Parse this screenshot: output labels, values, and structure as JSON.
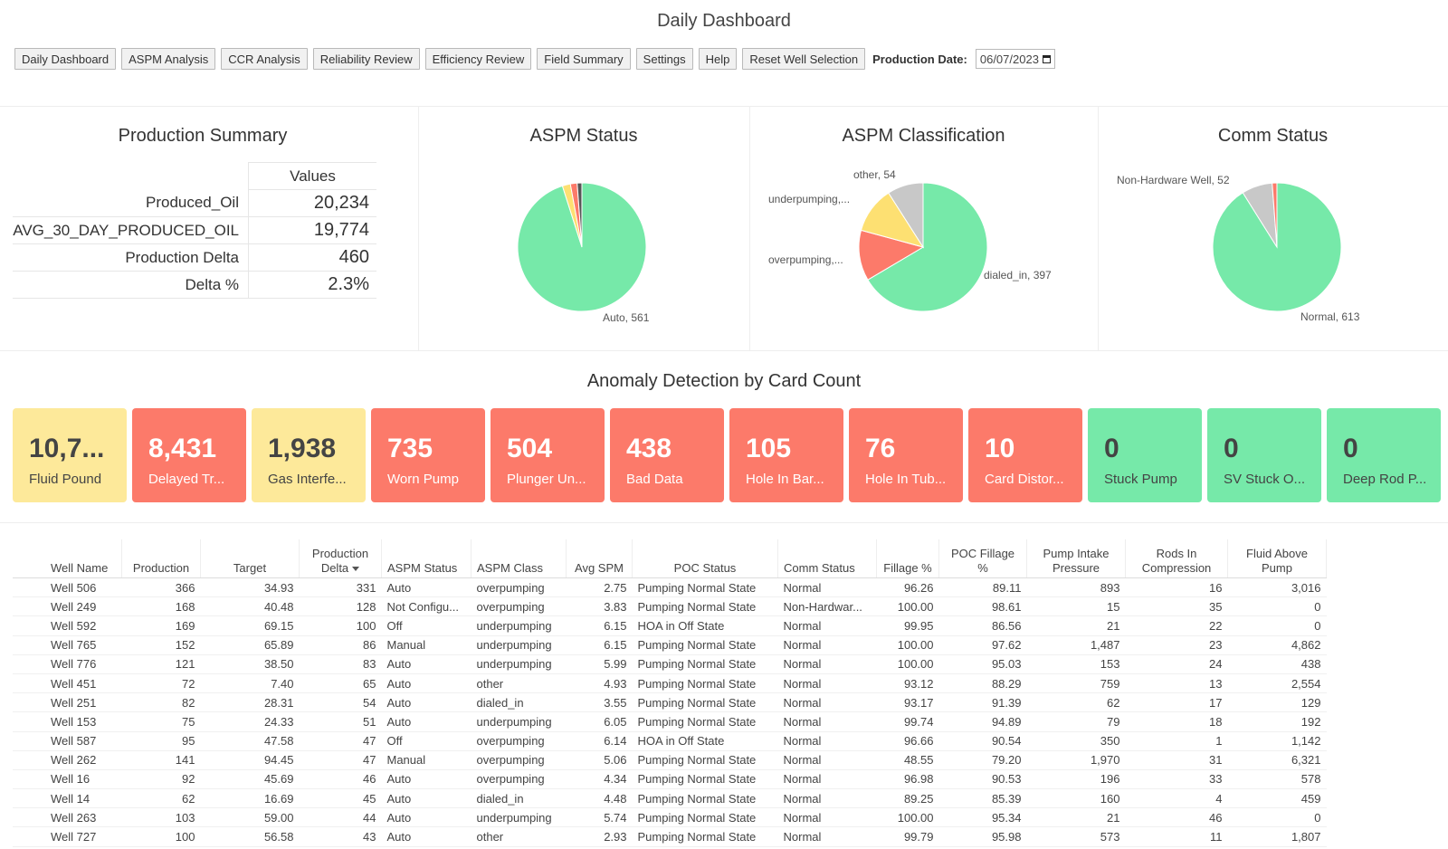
{
  "title": "Daily Dashboard",
  "nav": {
    "buttons": [
      "Daily Dashboard",
      "ASPM Analysis",
      "CCR Analysis",
      "Reliability Review",
      "Efficiency Review",
      "Field Summary",
      "Settings",
      "Help",
      "Reset Well Selection"
    ],
    "date_label": "Production Date:",
    "date_value": "06/07/2023"
  },
  "production_summary": {
    "title": "Production Summary",
    "header": "Values",
    "rows": [
      {
        "name": "Produced_Oil",
        "value": "20,234"
      },
      {
        "name": "AVG_30_DAY_PRODUCED_OIL",
        "value": "19,774"
      },
      {
        "name": "Production Delta",
        "value": "460"
      },
      {
        "name": "Delta %",
        "value": "2.3%"
      }
    ]
  },
  "colors": {
    "green": "#76e9a9",
    "red": "#fc7a6a",
    "yellow": "#fde072",
    "gray": "#c8c8c8",
    "dark": "#555555",
    "card_yellow": "#fde99a"
  },
  "chart_data": [
    {
      "type": "pie",
      "title": "ASPM Status",
      "slices": [
        {
          "label": "Auto",
          "value": 561,
          "color": "#76e9a9",
          "shown_label": "Auto, 561"
        },
        {
          "label": "",
          "value": 12,
          "color": "#fde072",
          "shown_label": ""
        },
        {
          "label": "",
          "value": 10,
          "color": "#fc7a6a",
          "shown_label": ""
        },
        {
          "label": "",
          "value": 7,
          "color": "#555555",
          "shown_label": ""
        }
      ]
    },
    {
      "type": "pie",
      "title": "ASPM Classification",
      "slices": [
        {
          "label": "dialed_in",
          "value": 397,
          "color": "#76e9a9",
          "shown_label": "dialed_in, 397"
        },
        {
          "label": "overpumping",
          "value": 76,
          "color": "#fc7a6a",
          "shown_label": "overpumping,..."
        },
        {
          "label": "underpumping",
          "value": 70,
          "color": "#fde072",
          "shown_label": "underpumping,..."
        },
        {
          "label": "other",
          "value": 54,
          "color": "#c8c8c8",
          "shown_label": "other, 54"
        }
      ]
    },
    {
      "type": "pie",
      "title": "Comm Status",
      "slices": [
        {
          "label": "Normal",
          "value": 613,
          "color": "#76e9a9",
          "shown_label": "Normal, 613"
        },
        {
          "label": "Non-Hardware Well",
          "value": 52,
          "color": "#c8c8c8",
          "shown_label": "Non-Hardware Well, 52"
        },
        {
          "label": "",
          "value": 8,
          "color": "#fc7a6a",
          "shown_label": ""
        }
      ]
    }
  ],
  "anomaly": {
    "title": "Anomaly Detection by Card Count",
    "cards": [
      {
        "value": "10,7...",
        "label": "Fluid Pound",
        "color": "#fde99a",
        "text": "#444444"
      },
      {
        "value": "8,431",
        "label": "Delayed Tr...",
        "color": "#fc7a6a",
        "text": "#ffffff"
      },
      {
        "value": "1,938",
        "label": "Gas Interfe...",
        "color": "#fde99a",
        "text": "#444444"
      },
      {
        "value": "735",
        "label": "Worn Pump",
        "color": "#fc7a6a",
        "text": "#ffffff"
      },
      {
        "value": "504",
        "label": "Plunger Un...",
        "color": "#fc7a6a",
        "text": "#ffffff"
      },
      {
        "value": "438",
        "label": "Bad Data",
        "color": "#fc7a6a",
        "text": "#ffffff"
      },
      {
        "value": "105",
        "label": "Hole In Bar...",
        "color": "#fc7a6a",
        "text": "#ffffff"
      },
      {
        "value": "76",
        "label": "Hole In Tub...",
        "color": "#fc7a6a",
        "text": "#ffffff"
      },
      {
        "value": "10",
        "label": "Card Distor...",
        "color": "#fc7a6a",
        "text": "#ffffff"
      },
      {
        "value": "0",
        "label": "Stuck Pump",
        "color": "#76e9a9",
        "text": "#444444"
      },
      {
        "value": "0",
        "label": "SV Stuck O...",
        "color": "#76e9a9",
        "text": "#444444"
      },
      {
        "value": "0",
        "label": "Deep Rod P...",
        "color": "#76e9a9",
        "text": "#444444"
      }
    ]
  },
  "table": {
    "columns": [
      "Well Name",
      "Production",
      "Target",
      "Production Delta",
      "ASPM Status",
      "ASPM Class",
      "Avg SPM",
      "POC Status",
      "Comm Status",
      "Fillage %",
      "POC Fillage %",
      "Pump Intake Pressure",
      "Rods In Compression",
      "Fluid Above Pump"
    ],
    "rows": [
      [
        "Well 506",
        "366",
        "34.93",
        "331",
        "Auto",
        "overpumping",
        "2.75",
        "Pumping Normal State",
        "Normal",
        "96.26",
        "89.11",
        "893",
        "16",
        "3,016"
      ],
      [
        "Well 249",
        "168",
        "40.48",
        "128",
        "Not Configu...",
        "overpumping",
        "3.83",
        "Pumping Normal State",
        "Non-Hardwar...",
        "100.00",
        "98.61",
        "15",
        "35",
        "0"
      ],
      [
        "Well 592",
        "169",
        "69.15",
        "100",
        "Off",
        "underpumping",
        "6.15",
        "HOA in Off State",
        "Normal",
        "99.95",
        "86.56",
        "21",
        "22",
        "0"
      ],
      [
        "Well 765",
        "152",
        "65.89",
        "86",
        "Manual",
        "underpumping",
        "6.15",
        "Pumping Normal State",
        "Normal",
        "100.00",
        "97.62",
        "1,487",
        "23",
        "4,862"
      ],
      [
        "Well 776",
        "121",
        "38.50",
        "83",
        "Auto",
        "underpumping",
        "5.99",
        "Pumping Normal State",
        "Normal",
        "100.00",
        "95.03",
        "153",
        "24",
        "438"
      ],
      [
        "Well 451",
        "72",
        "7.40",
        "65",
        "Auto",
        "other",
        "4.93",
        "Pumping Normal State",
        "Normal",
        "93.12",
        "88.29",
        "759",
        "13",
        "2,554"
      ],
      [
        "Well 251",
        "82",
        "28.31",
        "54",
        "Auto",
        "dialed_in",
        "3.55",
        "Pumping Normal State",
        "Normal",
        "93.17",
        "91.39",
        "62",
        "17",
        "129"
      ],
      [
        "Well 153",
        "75",
        "24.33",
        "51",
        "Auto",
        "underpumping",
        "6.05",
        "Pumping Normal State",
        "Normal",
        "99.74",
        "94.89",
        "79",
        "18",
        "192"
      ],
      [
        "Well 587",
        "95",
        "47.58",
        "47",
        "Off",
        "overpumping",
        "6.14",
        "HOA in Off State",
        "Normal",
        "96.66",
        "90.54",
        "350",
        "1",
        "1,142"
      ],
      [
        "Well 262",
        "141",
        "94.45",
        "47",
        "Manual",
        "overpumping",
        "5.06",
        "Pumping Normal State",
        "Normal",
        "48.55",
        "79.20",
        "1,970",
        "31",
        "6,321"
      ],
      [
        "Well 16",
        "92",
        "45.69",
        "46",
        "Auto",
        "overpumping",
        "4.34",
        "Pumping Normal State",
        "Normal",
        "96.98",
        "90.53",
        "196",
        "33",
        "578"
      ],
      [
        "Well 14",
        "62",
        "16.69",
        "45",
        "Auto",
        "dialed_in",
        "4.48",
        "Pumping Normal State",
        "Normal",
        "89.25",
        "85.39",
        "160",
        "4",
        "459"
      ],
      [
        "Well 263",
        "103",
        "59.00",
        "44",
        "Auto",
        "underpumping",
        "5.74",
        "Pumping Normal State",
        "Normal",
        "100.00",
        "95.34",
        "21",
        "46",
        "0"
      ],
      [
        "Well 727",
        "100",
        "56.58",
        "43",
        "Auto",
        "other",
        "2.93",
        "Pumping Normal State",
        "Normal",
        "99.79",
        "95.98",
        "573",
        "11",
        "1,807"
      ]
    ]
  }
}
